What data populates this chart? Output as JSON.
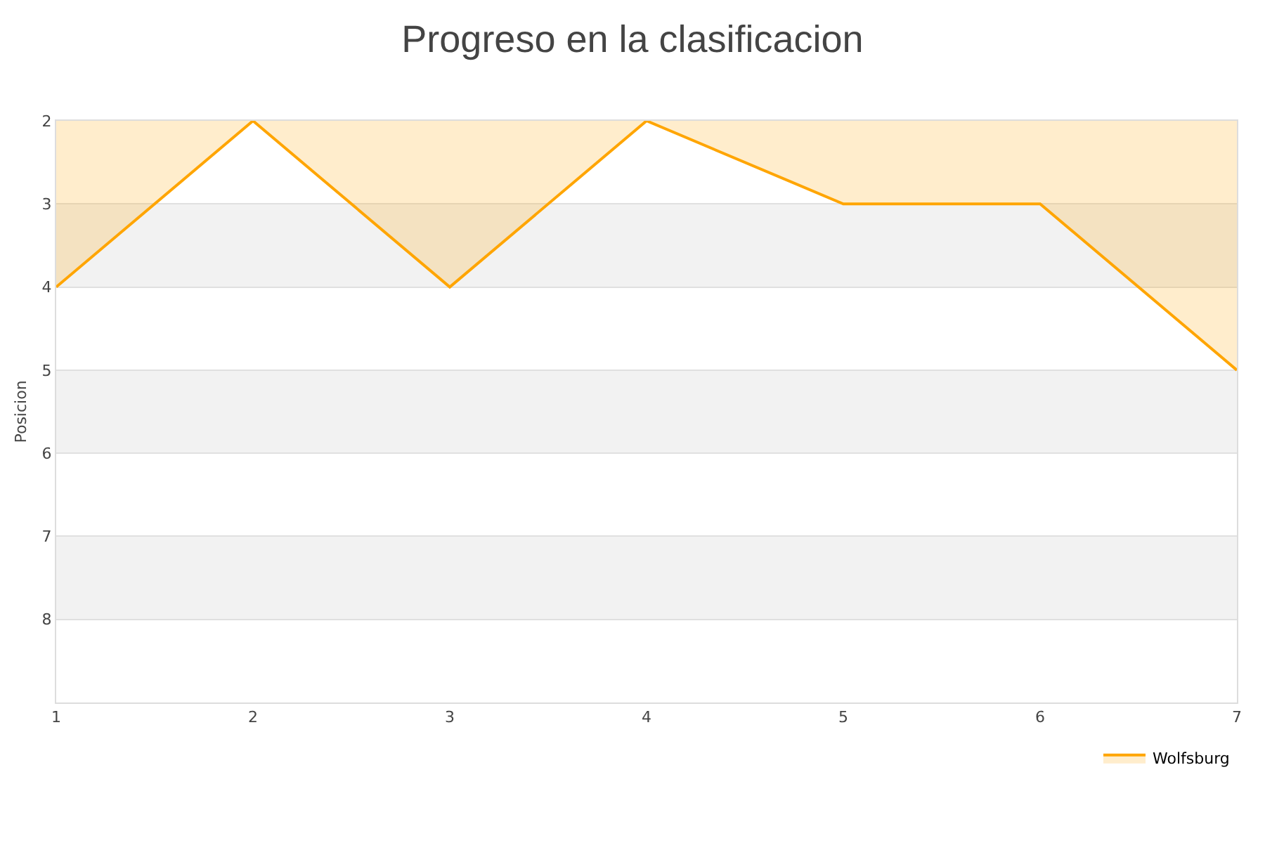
{
  "chart_data": {
    "type": "area",
    "title": "Progreso en la clasificacion",
    "ylabel": "Posicion",
    "x": [
      1,
      2,
      3,
      4,
      5,
      6,
      7
    ],
    "series": [
      {
        "name": "Wolfsburg",
        "color": "#ffa500",
        "values": [
          4,
          2,
          4,
          2,
          3,
          3,
          5
        ]
      }
    ],
    "xlim": [
      1,
      7
    ],
    "xticks": [
      1,
      2,
      3,
      4,
      5,
      6,
      7
    ],
    "ylim": [
      9,
      2
    ],
    "yticks": [
      2,
      3,
      4,
      5,
      6,
      7,
      8
    ],
    "bands": [
      {
        "axis": "y",
        "from": 3,
        "to": 4,
        "color": "#f2f2f2"
      },
      {
        "axis": "y",
        "from": 5,
        "to": 6,
        "color": "#f2f2f2"
      },
      {
        "axis": "y",
        "from": 7,
        "to": 8,
        "color": "#f2f2f2"
      }
    ],
    "grid": "y",
    "legend": "bottom right",
    "marker": "none",
    "line_style": "solid"
  }
}
